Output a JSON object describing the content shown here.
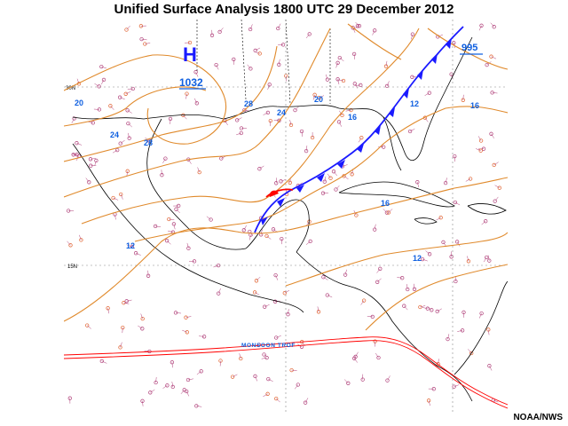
{
  "title": "Unified Surface Analysis 1800 UTC 29 December 2012",
  "credit": "NOAA/NWS",
  "high": {
    "symbol": "H",
    "pressure": "1032"
  },
  "low": {
    "pressure": "995"
  },
  "isobar_labels": [
    "20",
    "24",
    "28",
    "28",
    "24",
    "20",
    "16",
    "12",
    "16",
    "16",
    "12",
    "12"
  ],
  "latitude_labels": [
    "30N",
    "15N"
  ],
  "monsoon_trough_label": "MONSOON TROF",
  "colors": {
    "isobar": "#e08a2c",
    "front": "#1a1aff",
    "warm_front": "#ff0000",
    "trough": "#ff0000",
    "coast": "#000000",
    "pressure_label": "#1060e0",
    "station": "#b0407a"
  }
}
